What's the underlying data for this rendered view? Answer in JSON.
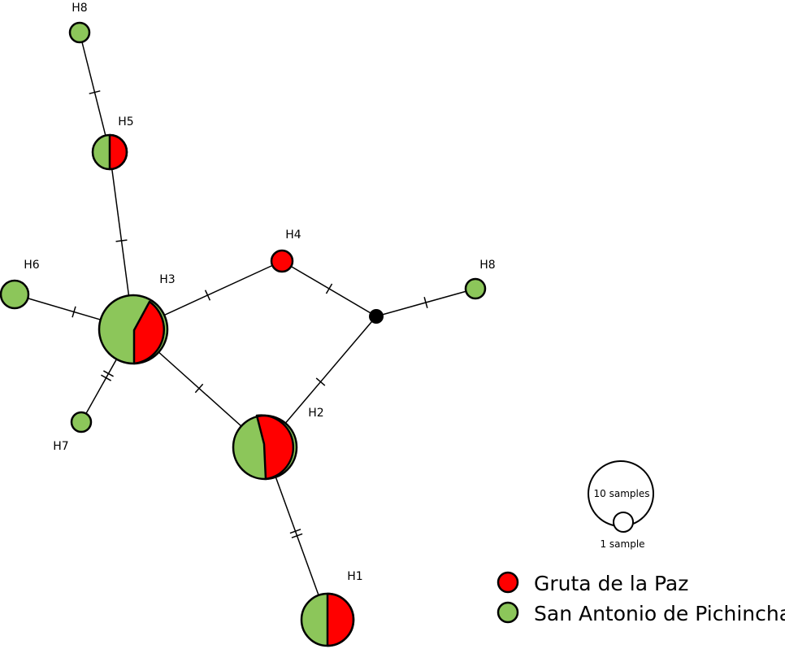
{
  "colors": {
    "Gruta de la Paz": "#ff0000",
    "San Antonio de Pichincha": "#8cc65a",
    "median": "#000000",
    "outline": "#000000"
  },
  "nodes": [
    {
      "id": "H8a",
      "label": "H8",
      "populations": {
        "San Antonio de Pichincha": 1
      }
    },
    {
      "id": "H5",
      "label": "H5",
      "populations": {
        "San Antonio de Pichincha": 1,
        "Gruta de la Paz": 1
      }
    },
    {
      "id": "H3",
      "label": "H3",
      "populations": {
        "San Antonio de Pichincha": 6,
        "Gruta de la Paz": 4
      }
    },
    {
      "id": "H6",
      "label": "H6",
      "populations": {
        "San Antonio de Pichincha": 2
      }
    },
    {
      "id": "H7",
      "label": "H7",
      "populations": {
        "San Antonio de Pichincha": 1
      }
    },
    {
      "id": "H4",
      "label": "H4",
      "populations": {
        "Gruta de la Paz": 1
      }
    },
    {
      "id": "median",
      "label": "",
      "populations": {}
    },
    {
      "id": "H8b",
      "label": "H8",
      "populations": {
        "San Antonio de Pichincha": 1
      }
    },
    {
      "id": "H2",
      "label": "H2",
      "populations": {
        "San Antonio de Pichincha": 4,
        "Gruta de la Paz": 5
      }
    },
    {
      "id": "H1",
      "label": "H1",
      "populations": {
        "San Antonio de Pichincha": 3,
        "Gruta de la Paz": 3
      }
    }
  ],
  "edges": [
    {
      "from": "H8a",
      "to": "H5",
      "mutations": 1
    },
    {
      "from": "H5",
      "to": "H3",
      "mutations": 1
    },
    {
      "from": "H6",
      "to": "H3",
      "mutations": 1
    },
    {
      "from": "H3",
      "to": "H7",
      "mutations": 2
    },
    {
      "from": "H3",
      "to": "H4",
      "mutations": 1
    },
    {
      "from": "H4",
      "to": "median",
      "mutations": 1
    },
    {
      "from": "median",
      "to": "H8b",
      "mutations": 1
    },
    {
      "from": "median",
      "to": "H2",
      "mutations": 1
    },
    {
      "from": "H3",
      "to": "H2",
      "mutations": 1
    },
    {
      "from": "H2",
      "to": "H1",
      "mutations": 2
    }
  ],
  "scale": {
    "large": "10 samples",
    "small": "1 sample"
  },
  "legend": [
    {
      "name": "Gruta de la Paz",
      "color": "#ff0000"
    },
    {
      "name": "San Antonio de Pichincha",
      "color": "#8cc65a"
    }
  ]
}
